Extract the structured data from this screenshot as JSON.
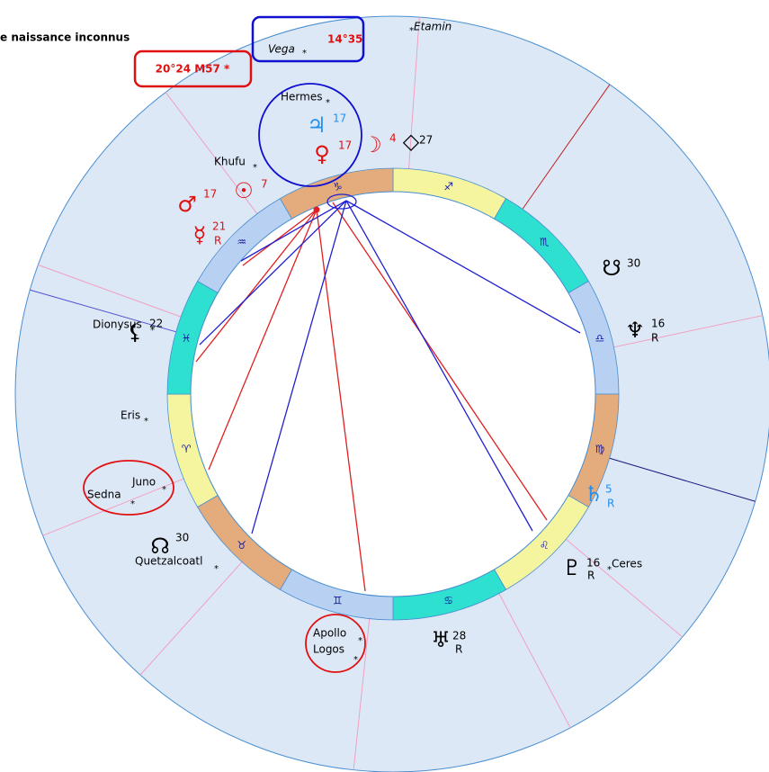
{
  "header": {
    "title": "e naissance inconnus"
  },
  "highlights": {
    "vega": {
      "name": "Vega",
      "position": "14°35"
    },
    "m57": "20°24  M57 *"
  },
  "star_marker": "*",
  "zodiac": [
    "♐",
    "♏",
    "♎",
    "♍",
    "♌",
    "♋",
    "♊",
    "♉",
    "♈",
    "♓",
    "♒",
    "♑"
  ],
  "stars": [
    "Etamin",
    "Hermes",
    "Khufu",
    "Dionysus",
    "Eris",
    "Juno",
    "Sedna",
    "Quetzalcoatl",
    "Apollo",
    "Logos",
    "Ceres"
  ],
  "points": [
    {
      "glyph": "♃",
      "degree": "17"
    },
    {
      "glyph": "♀",
      "degree": "17"
    },
    {
      "glyph": "☽",
      "degree": "4"
    },
    {
      "glyph": "◇",
      "degree": "27"
    },
    {
      "glyph": "♂",
      "degree": "17"
    },
    {
      "glyph": "☉",
      "degree": "7"
    },
    {
      "glyph": "☿",
      "degree": "21",
      "retrograde": "R"
    },
    {
      "glyph": "⚸",
      "degree": "22"
    },
    {
      "glyph": "☊",
      "degree": "30"
    },
    {
      "glyph": "♅",
      "degree": "28",
      "retrograde": "R"
    },
    {
      "glyph": "♇",
      "degree": "16",
      "retrograde": "R"
    },
    {
      "glyph": "♄",
      "degree": "5",
      "retrograde": "R"
    },
    {
      "glyph": "♆",
      "degree": "16",
      "retrograde": "R"
    },
    {
      "glyph": "☋",
      "degree": "30"
    }
  ]
}
